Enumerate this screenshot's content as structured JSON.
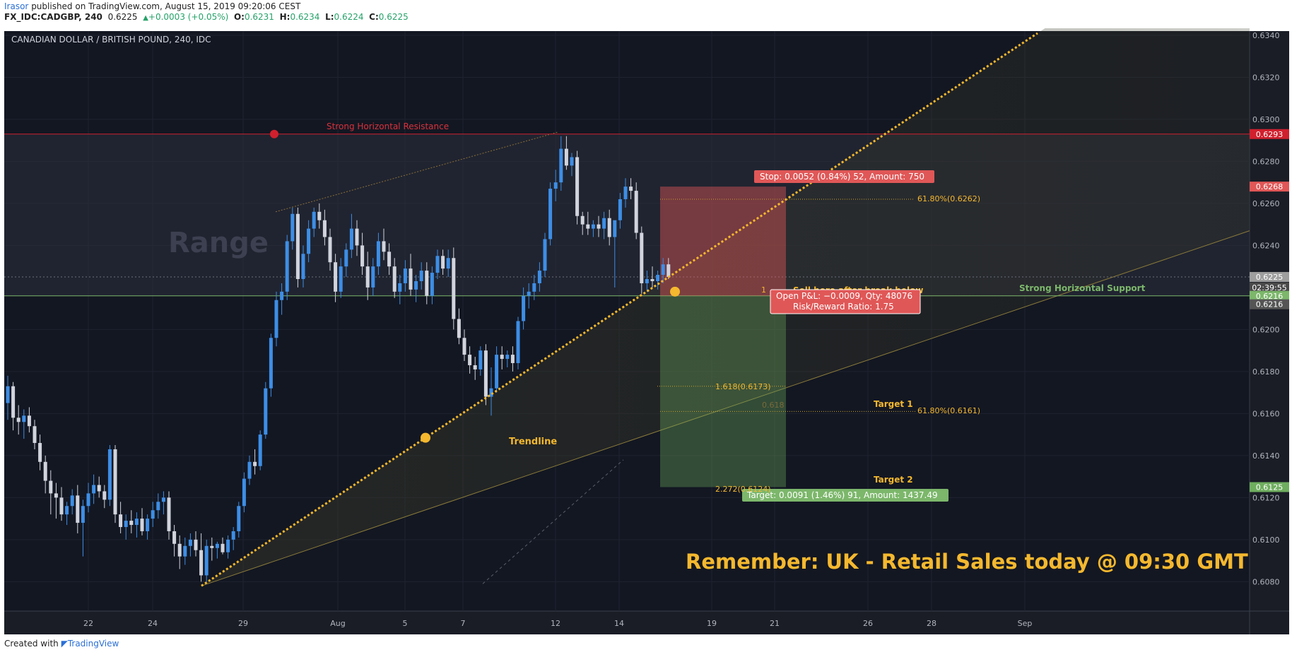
{
  "header": {
    "author": "Irasor",
    "published": "published on TradingView.com, August 15, 2019 09:20:06 CEST",
    "symbol": "FX_IDC:CADGBP, 240",
    "last": "0.6225",
    "change": "+0.0003 (+0.05%)",
    "o_label": "O:",
    "o_value": "0.6231",
    "h_label": "H:",
    "h_value": "0.6234",
    "l_label": "L:",
    "l_value": "0.6224",
    "c_label": "C:",
    "c_value": "0.6225"
  },
  "footer": {
    "created_with": "Created with",
    "brand": "TradingView"
  },
  "chart_data": {
    "type": "candlestick",
    "title": "CANADIAN DOLLAR / BRITISH POUND, 240, IDC",
    "ylim": [
      0.6066,
      0.6342
    ],
    "x_ticks": [
      "22",
      "24",
      "29",
      "Aug",
      "5",
      "7",
      "12",
      "14",
      "19",
      "21",
      "26",
      "28",
      "Sep"
    ],
    "y_ticks": [
      "0.6080",
      "0.6100",
      "0.6120",
      "0.6140",
      "0.6160",
      "0.6180",
      "0.6200",
      "0.6240",
      "0.6260",
      "0.6280",
      "0.6300",
      "0.6320",
      "0.6340"
    ],
    "price_badges": [
      {
        "label": "0.6293",
        "value": 0.6293,
        "color": "#d0202e"
      },
      {
        "label": "0.6268",
        "value": 0.6268,
        "color": "#e05757"
      },
      {
        "label": "0.6225",
        "value": 0.6225,
        "color": "#9e9e9e"
      },
      {
        "label": "02:39:55",
        "value": 0.622,
        "color": "#4a4a4a"
      },
      {
        "label": "0.6216",
        "value": 0.6216,
        "color": "#7cb76b"
      },
      {
        "label": "0.6216",
        "value": 0.6212,
        "color": "#555555"
      },
      {
        "label": "0.6125",
        "value": 0.6125,
        "color": "#6fae5f"
      }
    ],
    "levels": {
      "resistance": 0.6293,
      "support": 0.6216,
      "current": 0.6225,
      "stop": 0.6268,
      "target": 0.6125
    },
    "annotations": {
      "range": "Range",
      "resistance_label": "Strong Horizontal Resistance",
      "support_label": "Strong Horizontal Support",
      "trendline_label": "Trendline",
      "sell_label": "Sell here after break below",
      "stop_box": "Stop: 0.0052 (0.84%) 52, Amount: 750",
      "pnl_box": "Open P&L: −0.0009, Qty: 48076",
      "rr_box": "Risk/Reward Ratio: 1.75",
      "target_box": "Target: 0.0091 (1.46%) 91, Amount: 1437.49",
      "target1": "Target 1",
      "target2": "Target 2",
      "fib_6180_top": "61.80%(0.6262)",
      "fib_1618": "1.618(0.6173)",
      "fib_0618": "0.618",
      "fib_6180_bottom": "61.80%(0.6161)",
      "fib_2272": "2.272(0.6124)",
      "fib_one": "1",
      "remember": "Remember: UK - Retail Sales today @ 09:30 GMT"
    },
    "candles": [
      [
        0.6165,
        0.6178,
        0.6157,
        0.6173
      ],
      [
        0.6173,
        0.6175,
        0.6152,
        0.6158
      ],
      [
        0.6158,
        0.6164,
        0.615,
        0.6156
      ],
      [
        0.6156,
        0.6162,
        0.6148,
        0.6159
      ],
      [
        0.6159,
        0.6163,
        0.6151,
        0.6154
      ],
      [
        0.6154,
        0.6157,
        0.6143,
        0.6146
      ],
      [
        0.6146,
        0.615,
        0.6133,
        0.6137
      ],
      [
        0.6137,
        0.614,
        0.6122,
        0.6128
      ],
      [
        0.6128,
        0.6133,
        0.6112,
        0.6122
      ],
      [
        0.6122,
        0.6127,
        0.611,
        0.612
      ],
      [
        0.612,
        0.6125,
        0.6109,
        0.6112
      ],
      [
        0.6112,
        0.6118,
        0.6107,
        0.6116
      ],
      [
        0.6116,
        0.6124,
        0.6112,
        0.6121
      ],
      [
        0.6121,
        0.6126,
        0.6103,
        0.6108
      ],
      [
        0.6108,
        0.6119,
        0.6092,
        0.6116
      ],
      [
        0.6116,
        0.6127,
        0.6113,
        0.6122
      ],
      [
        0.6122,
        0.6131,
        0.6117,
        0.6126
      ],
      [
        0.6126,
        0.613,
        0.612,
        0.6123
      ],
      [
        0.6123,
        0.6126,
        0.6115,
        0.6119
      ],
      [
        0.6119,
        0.6145,
        0.6116,
        0.6143
      ],
      [
        0.6143,
        0.6145,
        0.6108,
        0.6112
      ],
      [
        0.6112,
        0.6118,
        0.6103,
        0.6106
      ],
      [
        0.6106,
        0.6112,
        0.61,
        0.6109
      ],
      [
        0.6109,
        0.6114,
        0.6103,
        0.6107
      ],
      [
        0.6107,
        0.6113,
        0.6101,
        0.611
      ],
      [
        0.611,
        0.6115,
        0.6102,
        0.6104
      ],
      [
        0.6104,
        0.6112,
        0.61,
        0.611
      ],
      [
        0.611,
        0.6118,
        0.6106,
        0.6114
      ],
      [
        0.6114,
        0.6122,
        0.611,
        0.6118
      ],
      [
        0.6118,
        0.6123,
        0.6112,
        0.612
      ],
      [
        0.612,
        0.6123,
        0.61,
        0.6104
      ],
      [
        0.6104,
        0.6107,
        0.6092,
        0.6098
      ],
      [
        0.6098,
        0.6102,
        0.6086,
        0.6092
      ],
      [
        0.6092,
        0.6101,
        0.6088,
        0.6097
      ],
      [
        0.6097,
        0.6103,
        0.6092,
        0.61
      ],
      [
        0.61,
        0.6104,
        0.6092,
        0.6095
      ],
      [
        0.6095,
        0.6103,
        0.608,
        0.6083
      ],
      [
        0.6083,
        0.61,
        0.608,
        0.6097
      ],
      [
        0.6097,
        0.6101,
        0.609,
        0.6096
      ],
      [
        0.6096,
        0.6099,
        0.6091,
        0.6098
      ],
      [
        0.6098,
        0.6101,
        0.6093,
        0.6094
      ],
      [
        0.6094,
        0.6102,
        0.6091,
        0.61
      ],
      [
        0.61,
        0.6106,
        0.6095,
        0.6104
      ],
      [
        0.6104,
        0.6118,
        0.6101,
        0.6116
      ],
      [
        0.6116,
        0.6132,
        0.6113,
        0.6129
      ],
      [
        0.6129,
        0.614,
        0.6126,
        0.6137
      ],
      [
        0.6137,
        0.6143,
        0.6131,
        0.6135
      ],
      [
        0.6135,
        0.6152,
        0.6133,
        0.615
      ],
      [
        0.615,
        0.6175,
        0.6148,
        0.6172
      ],
      [
        0.6172,
        0.6198,
        0.6168,
        0.6196
      ],
      [
        0.6196,
        0.6218,
        0.6192,
        0.6214
      ],
      [
        0.6214,
        0.6222,
        0.6207,
        0.6218
      ],
      [
        0.6218,
        0.6245,
        0.6214,
        0.6242
      ],
      [
        0.6242,
        0.6258,
        0.6238,
        0.6255
      ],
      [
        0.6255,
        0.6258,
        0.622,
        0.6224
      ],
      [
        0.6224,
        0.624,
        0.622,
        0.6236
      ],
      [
        0.6236,
        0.6252,
        0.6232,
        0.6248
      ],
      [
        0.6248,
        0.6258,
        0.6244,
        0.6256
      ],
      [
        0.6256,
        0.626,
        0.6248,
        0.6252
      ],
      [
        0.6252,
        0.6257,
        0.624,
        0.6244
      ],
      [
        0.6244,
        0.6248,
        0.6228,
        0.6232
      ],
      [
        0.6232,
        0.6236,
        0.6213,
        0.6218
      ],
      [
        0.6218,
        0.6234,
        0.6215,
        0.623
      ],
      [
        0.623,
        0.6241,
        0.6225,
        0.6238
      ],
      [
        0.6238,
        0.6255,
        0.6234,
        0.6248
      ],
      [
        0.6248,
        0.6252,
        0.6235,
        0.624
      ],
      [
        0.624,
        0.6246,
        0.6226,
        0.623
      ],
      [
        0.623,
        0.6237,
        0.6214,
        0.622
      ],
      [
        0.622,
        0.6234,
        0.6216,
        0.623
      ],
      [
        0.623,
        0.6246,
        0.6226,
        0.6242
      ],
      [
        0.6242,
        0.6248,
        0.6233,
        0.6237
      ],
      [
        0.6237,
        0.6241,
        0.6226,
        0.623
      ],
      [
        0.623,
        0.6234,
        0.6215,
        0.6218
      ],
      [
        0.6218,
        0.6226,
        0.6212,
        0.6222
      ],
      [
        0.6222,
        0.6233,
        0.6218,
        0.6229
      ],
      [
        0.6229,
        0.6236,
        0.6216,
        0.6219
      ],
      [
        0.6219,
        0.6226,
        0.6213,
        0.6223
      ],
      [
        0.6223,
        0.6232,
        0.6219,
        0.6228
      ],
      [
        0.6228,
        0.6232,
        0.6212,
        0.6216
      ],
      [
        0.6216,
        0.623,
        0.6212,
        0.6227
      ],
      [
        0.6227,
        0.6238,
        0.6224,
        0.6235
      ],
      [
        0.6235,
        0.6238,
        0.6226,
        0.6229
      ],
      [
        0.6229,
        0.6238,
        0.6225,
        0.6234
      ],
      [
        0.6234,
        0.6239,
        0.62,
        0.6205
      ],
      [
        0.6205,
        0.621,
        0.6193,
        0.6196
      ],
      [
        0.6196,
        0.62,
        0.6185,
        0.6188
      ],
      [
        0.6188,
        0.6192,
        0.6179,
        0.6183
      ],
      [
        0.6183,
        0.6187,
        0.6176,
        0.6181
      ],
      [
        0.6181,
        0.6192,
        0.6178,
        0.619
      ],
      [
        0.619,
        0.6193,
        0.6164,
        0.6168
      ],
      [
        0.6168,
        0.6182,
        0.6159,
        0.6172
      ],
      [
        0.6172,
        0.6192,
        0.617,
        0.6188
      ],
      [
        0.6188,
        0.6192,
        0.6181,
        0.6186
      ],
      [
        0.6186,
        0.619,
        0.6182,
        0.6188
      ],
      [
        0.6188,
        0.6192,
        0.618,
        0.6184
      ],
      [
        0.6184,
        0.6206,
        0.6181,
        0.6204
      ],
      [
        0.6204,
        0.622,
        0.62,
        0.6216
      ],
      [
        0.6216,
        0.6222,
        0.621,
        0.6218
      ],
      [
        0.6218,
        0.6226,
        0.6214,
        0.6222
      ],
      [
        0.6222,
        0.6232,
        0.6218,
        0.6228
      ],
      [
        0.6228,
        0.6246,
        0.6225,
        0.6243
      ],
      [
        0.6243,
        0.627,
        0.624,
        0.6267
      ],
      [
        0.6267,
        0.6276,
        0.6261,
        0.627
      ],
      [
        0.627,
        0.6292,
        0.6266,
        0.6286
      ],
      [
        0.6286,
        0.6292,
        0.6276,
        0.6278
      ],
      [
        0.6278,
        0.6284,
        0.6273,
        0.6282
      ],
      [
        0.6282,
        0.6285,
        0.625,
        0.6254
      ],
      [
        0.6254,
        0.6256,
        0.6245,
        0.625
      ],
      [
        0.625,
        0.6256,
        0.6245,
        0.6248
      ],
      [
        0.6248,
        0.6252,
        0.6244,
        0.625
      ],
      [
        0.625,
        0.6254,
        0.6244,
        0.6248
      ],
      [
        0.6248,
        0.6256,
        0.6243,
        0.6253
      ],
      [
        0.6253,
        0.6257,
        0.624,
        0.6244
      ],
      [
        0.6244,
        0.625,
        0.622,
        0.6252
      ],
      [
        0.6252,
        0.6265,
        0.6248,
        0.6262
      ],
      [
        0.6262,
        0.6272,
        0.6258,
        0.6268
      ],
      [
        0.6268,
        0.6272,
        0.6262,
        0.6266
      ],
      [
        0.6266,
        0.627,
        0.6243,
        0.6246
      ],
      [
        0.6246,
        0.6249,
        0.6217,
        0.6222
      ],
      [
        0.6222,
        0.6228,
        0.6218,
        0.6224
      ],
      [
        0.6224,
        0.623,
        0.622,
        0.6223
      ],
      [
        0.6223,
        0.6228,
        0.6219,
        0.6226
      ],
      [
        0.6226,
        0.6234,
        0.6222,
        0.6231
      ],
      [
        0.6231,
        0.6234,
        0.6224,
        0.6225
      ]
    ]
  }
}
